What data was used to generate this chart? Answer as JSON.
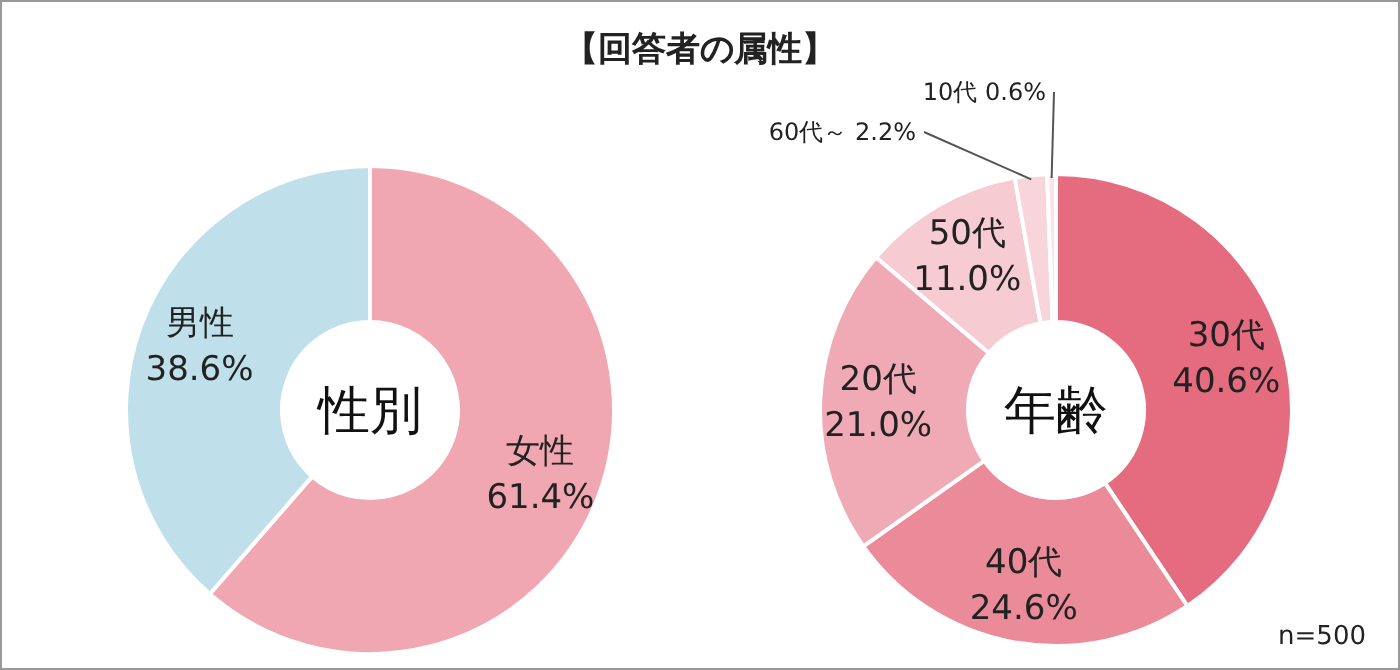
{
  "chart_data": [
    {
      "type": "donut",
      "title": "性別",
      "annotations": [
        "【回答者の属性】"
      ],
      "categories": [
        "女性",
        "男性"
      ],
      "values": [
        61.4,
        38.6
      ],
      "value_labels": [
        "61.4%",
        "38.6%"
      ],
      "colors": [
        "#f0a7b1",
        "#bfe0ea"
      ]
    },
    {
      "type": "donut",
      "title": "年齢",
      "annotations": [
        "n=500"
      ],
      "categories": [
        "30代",
        "40代",
        "20代",
        "50代",
        "60代～",
        "10代"
      ],
      "values": [
        40.6,
        24.6,
        21.0,
        11.0,
        2.2,
        0.6
      ],
      "value_labels": [
        "40.6%",
        "24.6%",
        "21.0%",
        "11.0%",
        "2.2%",
        "0.6%"
      ],
      "colors": [
        "#e56b7e",
        "#eb8a98",
        "#f0aab5",
        "#f6cbd2",
        "#f8d5da",
        "#fae3e6"
      ]
    }
  ]
}
